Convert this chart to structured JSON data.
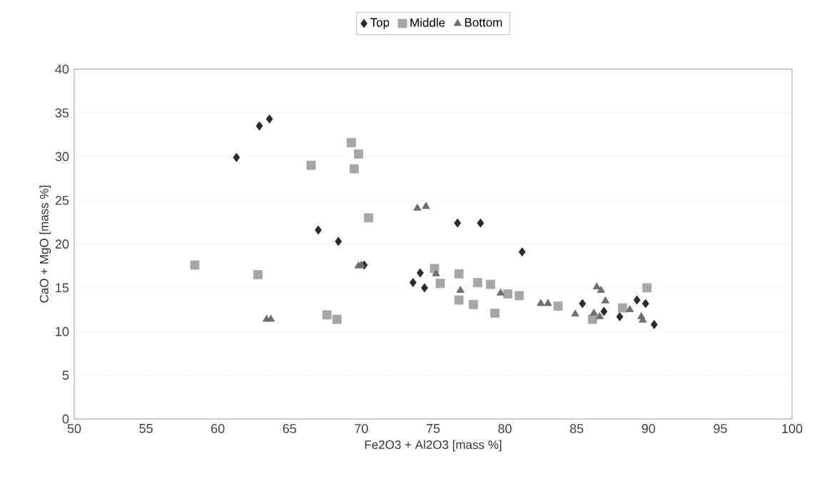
{
  "chart_data": {
    "type": "scatter",
    "xlabel": "Fe2O3 + Al2O3 [mass %]",
    "ylabel": "CaO + MgO [mass %]",
    "xlim": [
      50,
      100
    ],
    "ylim": [
      0,
      40
    ],
    "xticks": [
      50,
      55,
      60,
      65,
      70,
      75,
      80,
      85,
      90,
      95,
      100
    ],
    "yticks": [
      0,
      5,
      10,
      15,
      20,
      25,
      30,
      35,
      40
    ],
    "grid": "y",
    "legend": "top",
    "series": [
      {
        "name": "Top",
        "color": "#2b2b2b",
        "marker": "diamond",
        "x": [
          61.3,
          62.9,
          63.6,
          67.0,
          68.4,
          70.2,
          74.1,
          73.6,
          74.4,
          76.7,
          78.3,
          81.2,
          85.4,
          89.2,
          89.8,
          86.9,
          88.0,
          90.4
        ],
        "values": [
          29.9,
          33.5,
          34.3,
          21.6,
          20.3,
          17.6,
          16.7,
          15.6,
          15.0,
          22.4,
          22.4,
          19.1,
          13.2,
          13.6,
          13.2,
          12.3,
          11.7,
          10.8
        ]
      },
      {
        "name": "Middle",
        "color": "#a6a6a6",
        "marker": "square",
        "x": [
          58.4,
          62.8,
          66.5,
          69.3,
          69.8,
          69.5,
          70.5,
          67.6,
          68.3,
          75.1,
          76.8,
          75.5,
          78.1,
          79.0,
          80.2,
          81.0,
          76.8,
          77.8,
          79.3,
          83.7,
          86.1,
          89.9,
          88.2
        ],
        "values": [
          17.6,
          16.5,
          29.0,
          31.6,
          30.3,
          28.6,
          23.0,
          11.9,
          11.4,
          17.2,
          16.6,
          15.5,
          15.6,
          15.4,
          14.3,
          14.1,
          13.6,
          13.1,
          12.1,
          12.9,
          11.4,
          15.0,
          12.7
        ]
      },
      {
        "name": "Bottom",
        "color": "#6e6e6e",
        "marker": "triangle",
        "x": [
          63.4,
          63.7,
          73.9,
          74.5,
          69.8,
          70.0,
          75.2,
          76.9,
          79.7,
          82.5,
          83.0,
          84.9,
          86.4,
          86.7,
          87.0,
          86.2,
          86.6,
          88.7,
          89.5,
          89.6
        ],
        "values": [
          11.4,
          11.4,
          24.1,
          24.3,
          17.5,
          17.6,
          16.6,
          14.7,
          14.4,
          13.2,
          13.2,
          12.0,
          15.1,
          14.7,
          13.5,
          12.1,
          11.7,
          12.5,
          11.7,
          11.3
        ]
      }
    ]
  }
}
